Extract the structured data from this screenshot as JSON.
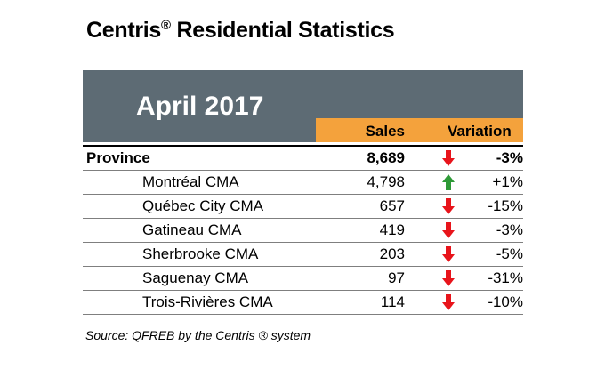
{
  "title": {
    "text": "Centris",
    "mark": "®",
    "rest": " Residential Statistics"
  },
  "period": "April 2017",
  "columns": {
    "sales": "Sales",
    "variation": "Variation"
  },
  "colors": {
    "banner": "#5d6b74",
    "header_accent": "#f4a23c",
    "arrow_down": "#e8141b",
    "arrow_up": "#2e9a37"
  },
  "rows": [
    {
      "name": "Province",
      "sales": "8,689",
      "variation": "-3%",
      "trend": "down",
      "bold": true
    },
    {
      "name": "Montréal CMA",
      "sales": "4,798",
      "variation": "+1%",
      "trend": "up"
    },
    {
      "name": "Québec City CMA",
      "sales": "657",
      "variation": "-15%",
      "trend": "down"
    },
    {
      "name": "Gatineau CMA",
      "sales": "419",
      "variation": "-3%",
      "trend": "down"
    },
    {
      "name": "Sherbrooke CMA",
      "sales": "203",
      "variation": "-5%",
      "trend": "down"
    },
    {
      "name": "Saguenay CMA",
      "sales": "97",
      "variation": "-31%",
      "trend": "down"
    },
    {
      "name": "Trois-Rivières CMA",
      "sales": "114",
      "variation": "-10%",
      "trend": "down"
    }
  ],
  "source": "Source: QFREB by the Centris ® system"
}
